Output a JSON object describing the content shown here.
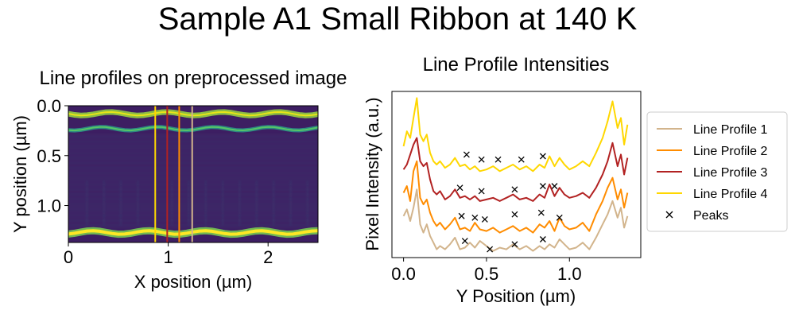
{
  "figure": {
    "title": "Sample A1 Small Ribbon at 140 K"
  },
  "colors": {
    "profile1": "#d2b48c",
    "profile2": "#ff8c00",
    "profile3": "#b22222",
    "profile4": "#ffd700",
    "peaks": "#000000"
  },
  "chart_data": [
    {
      "type": "heatmap",
      "title": "Line profiles on preprocessed image",
      "xlabel": "X position (µm)",
      "ylabel": "Y position (µm)",
      "xlim": [
        0,
        2.5
      ],
      "ylim": [
        1.37,
        0.0
      ],
      "xticks": [
        0,
        1,
        2
      ],
      "xtick_labels": [
        "0",
        "1",
        "2"
      ],
      "yticks": [
        0.0,
        0.5,
        1.0
      ],
      "ytick_labels": [
        "0.0",
        "0.5",
        "1.0"
      ],
      "colormap": "viridis",
      "bright_bands_y": [
        0.08,
        0.23,
        1.27
      ],
      "vertical_lines": [
        {
          "name": "Line Profile 1",
          "x": 1.24,
          "color": "#d2b48c"
        },
        {
          "name": "Line Profile 2",
          "x": 1.11,
          "color": "#ff8c00"
        },
        {
          "name": "Line Profile 3",
          "x": 0.99,
          "color": "#b22222"
        },
        {
          "name": "Line Profile 4",
          "x": 0.87,
          "color": "#ffd700"
        }
      ]
    },
    {
      "type": "line",
      "title": "Line Profile Intensities",
      "xlabel": "Y Position (µm)",
      "ylabel": "Pixel Intensity (a.u.)",
      "xlim": [
        -0.07,
        1.43
      ],
      "ylim": [
        0,
        1
      ],
      "xticks": [
        0.0,
        0.5,
        1.0
      ],
      "xtick_labels": [
        "0.0",
        "0.5",
        "1.0"
      ],
      "legend_position": "outside-right",
      "legend": [
        "Line Profile 1",
        "Line Profile 2",
        "Line Profile 3",
        "Line Profile 4",
        "Peaks"
      ],
      "series": [
        {
          "name": "Line Profile 1",
          "color": "#d2b48c",
          "x": [
            0.0,
            0.02,
            0.04,
            0.06,
            0.08,
            0.1,
            0.12,
            0.14,
            0.16,
            0.18,
            0.2,
            0.22,
            0.25,
            0.28,
            0.31,
            0.34,
            0.37,
            0.4,
            0.43,
            0.46,
            0.5,
            0.54,
            0.58,
            0.62,
            0.66,
            0.7,
            0.74,
            0.78,
            0.82,
            0.85,
            0.88,
            0.91,
            0.94,
            0.97,
            1.0,
            1.04,
            1.08,
            1.12,
            1.16,
            1.2,
            1.23,
            1.26,
            1.29,
            1.31,
            1.33,
            1.35
          ],
          "y": [
            0.25,
            0.29,
            0.22,
            0.3,
            0.41,
            0.2,
            0.15,
            0.2,
            0.13,
            0.09,
            0.05,
            0.07,
            0.05,
            0.08,
            0.12,
            0.05,
            0.06,
            0.09,
            0.06,
            0.1,
            0.07,
            0.04,
            0.06,
            0.05,
            0.08,
            0.05,
            0.07,
            0.04,
            0.07,
            0.05,
            0.08,
            0.06,
            0.11,
            0.08,
            0.05,
            0.06,
            0.09,
            0.05,
            0.12,
            0.2,
            0.26,
            0.34,
            0.24,
            0.3,
            0.18,
            0.25
          ]
        },
        {
          "name": "Line Profile 2",
          "color": "#ff8c00",
          "x": [
            0.0,
            0.02,
            0.04,
            0.06,
            0.08,
            0.1,
            0.12,
            0.14,
            0.16,
            0.18,
            0.2,
            0.22,
            0.25,
            0.28,
            0.31,
            0.34,
            0.37,
            0.4,
            0.43,
            0.46,
            0.5,
            0.54,
            0.58,
            0.62,
            0.66,
            0.7,
            0.74,
            0.78,
            0.82,
            0.85,
            0.88,
            0.91,
            0.94,
            0.97,
            1.0,
            1.04,
            1.08,
            1.12,
            1.16,
            1.2,
            1.23,
            1.26,
            1.29,
            1.31,
            1.33,
            1.35
          ],
          "y": [
            0.39,
            0.43,
            0.34,
            0.52,
            0.58,
            0.36,
            0.32,
            0.35,
            0.27,
            0.22,
            0.19,
            0.21,
            0.17,
            0.2,
            0.24,
            0.17,
            0.18,
            0.16,
            0.21,
            0.17,
            0.16,
            0.18,
            0.15,
            0.17,
            0.19,
            0.16,
            0.18,
            0.15,
            0.2,
            0.18,
            0.22,
            0.16,
            0.24,
            0.19,
            0.17,
            0.18,
            0.21,
            0.16,
            0.26,
            0.34,
            0.42,
            0.48,
            0.35,
            0.41,
            0.3,
            0.39
          ]
        },
        {
          "name": "Line Profile 3",
          "color": "#b22222",
          "x": [
            0.0,
            0.02,
            0.04,
            0.06,
            0.08,
            0.1,
            0.12,
            0.14,
            0.16,
            0.18,
            0.2,
            0.22,
            0.25,
            0.28,
            0.31,
            0.34,
            0.37,
            0.4,
            0.43,
            0.46,
            0.5,
            0.54,
            0.58,
            0.62,
            0.66,
            0.7,
            0.74,
            0.78,
            0.82,
            0.85,
            0.88,
            0.91,
            0.94,
            0.97,
            1.0,
            1.04,
            1.08,
            1.12,
            1.16,
            1.2,
            1.23,
            1.26,
            1.29,
            1.31,
            1.33,
            1.35
          ],
          "y": [
            0.53,
            0.56,
            0.62,
            0.68,
            0.72,
            0.58,
            0.55,
            0.57,
            0.47,
            0.4,
            0.38,
            0.4,
            0.35,
            0.37,
            0.41,
            0.36,
            0.37,
            0.35,
            0.37,
            0.34,
            0.35,
            0.36,
            0.34,
            0.36,
            0.38,
            0.35,
            0.36,
            0.34,
            0.38,
            0.36,
            0.44,
            0.37,
            0.42,
            0.38,
            0.36,
            0.37,
            0.39,
            0.36,
            0.42,
            0.5,
            0.58,
            0.69,
            0.55,
            0.62,
            0.5,
            0.6
          ]
        },
        {
          "name": "Line Profile 4",
          "color": "#ffd700",
          "x": [
            0.0,
            0.02,
            0.04,
            0.06,
            0.08,
            0.1,
            0.12,
            0.14,
            0.16,
            0.18,
            0.2,
            0.22,
            0.25,
            0.28,
            0.31,
            0.34,
            0.37,
            0.4,
            0.43,
            0.46,
            0.5,
            0.54,
            0.58,
            0.62,
            0.66,
            0.7,
            0.74,
            0.78,
            0.82,
            0.85,
            0.88,
            0.91,
            0.94,
            0.97,
            1.0,
            1.04,
            1.08,
            1.12,
            1.16,
            1.2,
            1.23,
            1.26,
            1.29,
            1.31,
            1.33,
            1.35
          ],
          "y": [
            0.67,
            0.76,
            0.72,
            0.84,
            0.96,
            0.74,
            0.7,
            0.74,
            0.63,
            0.58,
            0.56,
            0.58,
            0.54,
            0.56,
            0.6,
            0.55,
            0.56,
            0.53,
            0.55,
            0.52,
            0.53,
            0.55,
            0.52,
            0.54,
            0.56,
            0.53,
            0.55,
            0.52,
            0.56,
            0.54,
            0.61,
            0.55,
            0.6,
            0.56,
            0.53,
            0.55,
            0.58,
            0.55,
            0.63,
            0.72,
            0.82,
            0.94,
            0.78,
            0.84,
            0.68,
            0.8
          ]
        }
      ],
      "peaks": [
        {
          "x": 0.37,
          "y": 0.1
        },
        {
          "x": 0.52,
          "y": 0.05
        },
        {
          "x": 0.67,
          "y": 0.08
        },
        {
          "x": 0.84,
          "y": 0.11
        },
        {
          "x": 0.35,
          "y": 0.25
        },
        {
          "x": 0.43,
          "y": 0.24
        },
        {
          "x": 0.49,
          "y": 0.23
        },
        {
          "x": 0.67,
          "y": 0.26
        },
        {
          "x": 0.83,
          "y": 0.27
        },
        {
          "x": 0.94,
          "y": 0.24
        },
        {
          "x": 0.34,
          "y": 0.42
        },
        {
          "x": 0.47,
          "y": 0.4
        },
        {
          "x": 0.67,
          "y": 0.41
        },
        {
          "x": 0.84,
          "y": 0.43
        },
        {
          "x": 0.91,
          "y": 0.43
        },
        {
          "x": 0.38,
          "y": 0.62
        },
        {
          "x": 0.47,
          "y": 0.59
        },
        {
          "x": 0.57,
          "y": 0.59
        },
        {
          "x": 0.71,
          "y": 0.59
        },
        {
          "x": 0.84,
          "y": 0.61
        }
      ]
    }
  ]
}
